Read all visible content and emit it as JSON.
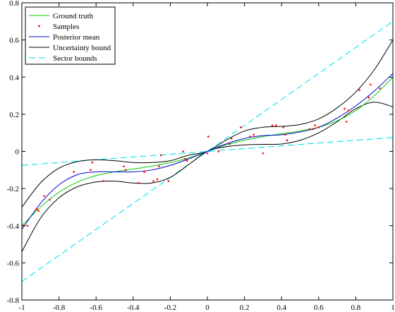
{
  "chart_data": {
    "type": "line",
    "title": "",
    "xlabel": "",
    "ylabel": "",
    "xlim": [
      -1,
      1
    ],
    "ylim": [
      -0.8,
      0.8
    ],
    "x_ticks": [
      -1,
      -0.8,
      -0.6,
      -0.4,
      -0.2,
      0,
      0.2,
      0.4,
      0.6,
      0.8,
      1
    ],
    "y_ticks": [
      -0.8,
      -0.6,
      -0.4,
      -0.2,
      0,
      0.2,
      0.4,
      0.6,
      0.8
    ],
    "x_tick_labels": [
      "-1",
      "-0.8",
      "-0.6",
      "-0.4",
      "-0.2",
      "0",
      "0.2",
      "0.4",
      "0.6",
      "0.8",
      "1"
    ],
    "y_tick_labels": [
      "-0.8",
      "-0.6",
      "-0.4",
      "-0.2",
      "0",
      "0.2",
      "0.4",
      "0.6",
      "0.8"
    ],
    "grid": false,
    "legend_position": "top-left",
    "series": [
      {
        "name": "Ground truth",
        "color": "#00cc00",
        "style": "solid",
        "x": [
          -1,
          -0.9,
          -0.8,
          -0.7,
          -0.6,
          -0.5,
          -0.4,
          -0.3,
          -0.2,
          -0.1,
          0,
          0.1,
          0.2,
          0.3,
          0.4,
          0.5,
          0.6,
          0.7,
          0.8,
          0.9,
          1
        ],
        "y": [
          -0.4,
          -0.3,
          -0.22,
          -0.165,
          -0.13,
          -0.11,
          -0.095,
          -0.08,
          -0.06,
          -0.035,
          0,
          0.035,
          0.06,
          0.08,
          0.095,
          0.11,
          0.13,
          0.165,
          0.22,
          0.3,
          0.4
        ]
      },
      {
        "name": "Posterior mean",
        "color": "#0000cc",
        "style": "solid",
        "x": [
          -1,
          -0.9,
          -0.8,
          -0.7,
          -0.6,
          -0.5,
          -0.4,
          -0.3,
          -0.2,
          -0.1,
          0,
          0.1,
          0.2,
          0.3,
          0.4,
          0.5,
          0.6,
          0.7,
          0.8,
          0.9,
          1
        ],
        "y": [
          -0.42,
          -0.28,
          -0.18,
          -0.125,
          -0.11,
          -0.11,
          -0.11,
          -0.1,
          -0.075,
          -0.04,
          0,
          0.04,
          0.07,
          0.085,
          0.09,
          0.105,
          0.13,
          0.18,
          0.245,
          0.325,
          0.42
        ]
      },
      {
        "name": "Uncertainty bound",
        "color": "#000000",
        "style": "solid",
        "x": [
          -1,
          -0.9,
          -0.8,
          -0.7,
          -0.6,
          -0.5,
          -0.4,
          -0.3,
          -0.2,
          -0.1,
          0,
          0.1,
          0.2,
          0.3,
          0.4,
          0.5,
          0.6,
          0.7,
          0.8,
          0.9,
          1
        ],
        "y": [
          -0.3,
          -0.17,
          -0.09,
          -0.055,
          -0.045,
          -0.05,
          -0.06,
          -0.06,
          -0.05,
          -0.02,
          0,
          0.06,
          0.11,
          0.13,
          0.135,
          0.145,
          0.175,
          0.235,
          0.32,
          0.44,
          0.6
        ]
      },
      {
        "name": "",
        "color": "#000000",
        "style": "solid",
        "x": [
          -1,
          -0.9,
          -0.8,
          -0.7,
          -0.6,
          -0.5,
          -0.4,
          -0.3,
          -0.2,
          -0.1,
          0,
          0.1,
          0.2,
          0.3,
          0.4,
          0.5,
          0.6,
          0.7,
          0.8,
          0.9,
          1
        ],
        "y": [
          -0.54,
          -0.36,
          -0.25,
          -0.19,
          -0.165,
          -0.16,
          -0.17,
          -0.17,
          -0.14,
          -0.07,
          0,
          0.025,
          0.035,
          0.038,
          0.04,
          0.06,
          0.1,
          0.16,
          0.23,
          0.265,
          0.24
        ]
      },
      {
        "name": "Sector bounds",
        "color": "#00e5ee",
        "style": "dashed",
        "x": [
          -1,
          1
        ],
        "y": [
          -0.7,
          0.7
        ]
      },
      {
        "name": "",
        "color": "#00e5ee",
        "style": "dashed",
        "x": [
          -1,
          1
        ],
        "y": [
          -0.075,
          0.075
        ]
      }
    ],
    "samples": {
      "name": "Samples",
      "color": "#ff0000",
      "points": [
        [
          -0.99,
          -0.4
        ],
        [
          -0.97,
          -0.4
        ],
        [
          -0.92,
          -0.31
        ],
        [
          -0.91,
          -0.32
        ],
        [
          -0.88,
          -0.24
        ],
        [
          -0.85,
          -0.26
        ],
        [
          -0.72,
          -0.11
        ],
        [
          -0.63,
          -0.1
        ],
        [
          -0.62,
          -0.06
        ],
        [
          -0.56,
          -0.16
        ],
        [
          -0.45,
          -0.08
        ],
        [
          -0.44,
          -0.1
        ],
        [
          -0.37,
          -0.17
        ],
        [
          -0.34,
          -0.11
        ],
        [
          -0.29,
          -0.16
        ],
        [
          -0.27,
          -0.15
        ],
        [
          -0.26,
          -0.08
        ],
        [
          -0.25,
          -0.02
        ],
        [
          -0.21,
          -0.16
        ],
        [
          -0.13,
          0
        ],
        [
          -0.12,
          -0.04
        ],
        [
          -0.11,
          -0.05
        ],
        [
          0,
          -0.01
        ],
        [
          0.005,
          0.08
        ],
        [
          0.06,
          0
        ],
        [
          0.12,
          0.04
        ],
        [
          0.13,
          0.07
        ],
        [
          0.18,
          0.13
        ],
        [
          0.23,
          0.08
        ],
        [
          0.25,
          0.09
        ],
        [
          0.3,
          -0.01
        ],
        [
          0.35,
          0.14
        ],
        [
          0.37,
          0.14
        ],
        [
          0.41,
          0.13
        ],
        [
          0.42,
          0.09
        ],
        [
          0.43,
          0.06
        ],
        [
          0.55,
          0.12
        ],
        [
          0.57,
          0.12
        ],
        [
          0.58,
          0.14
        ],
        [
          0.6,
          0.13
        ],
        [
          0.74,
          0.23
        ],
        [
          0.75,
          0.16
        ],
        [
          0.76,
          0.22
        ],
        [
          0.82,
          0.33
        ],
        [
          0.87,
          0.29
        ],
        [
          0.88,
          0.36
        ],
        [
          0.93,
          0.34
        ]
      ]
    },
    "legend": [
      {
        "label": "Ground truth",
        "color": "#00cc00",
        "kind": "line"
      },
      {
        "label": "Samples",
        "color": "#ff0000",
        "kind": "marker"
      },
      {
        "label": "Posterior mean",
        "color": "#0000cc",
        "kind": "line"
      },
      {
        "label": "Uncertainty bound",
        "color": "#000000",
        "kind": "line"
      },
      {
        "label": "Sector bounds",
        "color": "#00e5ee",
        "kind": "dashed"
      }
    ]
  }
}
